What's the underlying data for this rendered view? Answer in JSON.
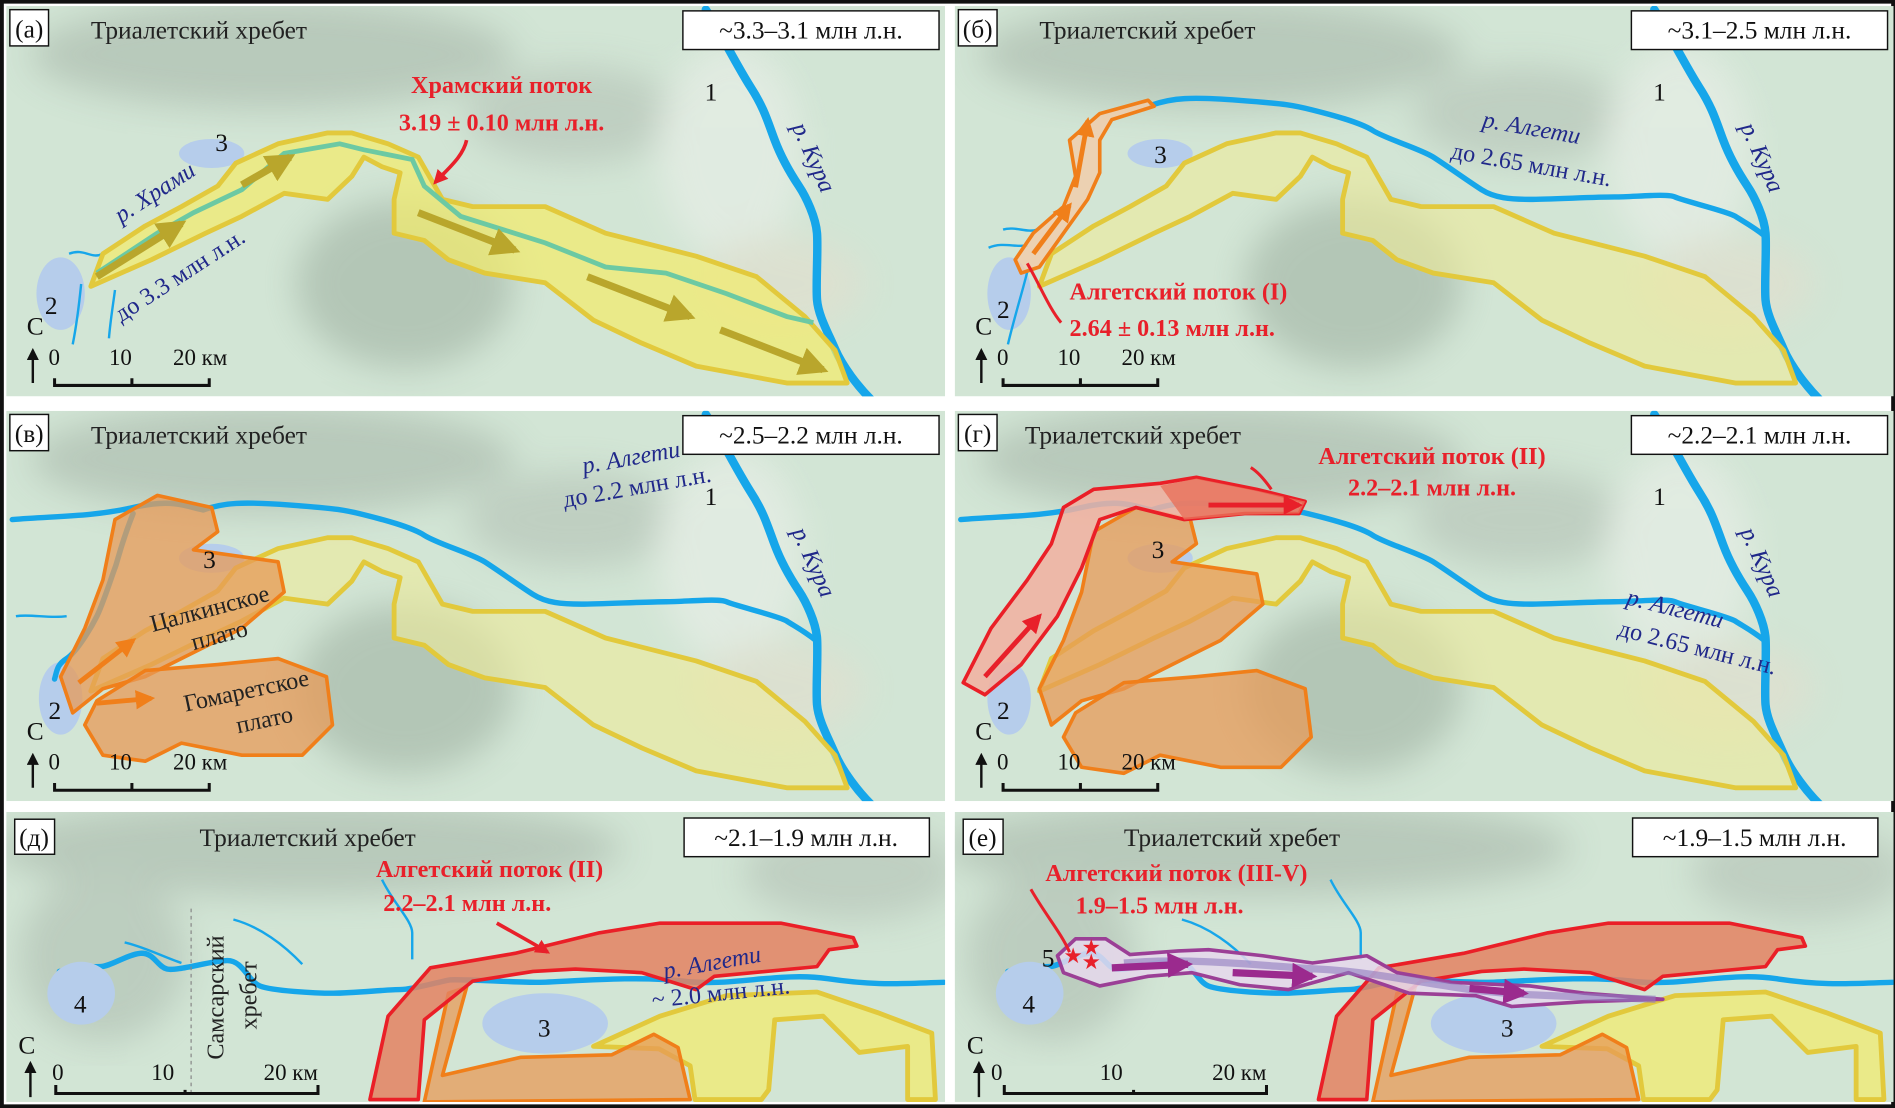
{
  "common": {
    "ridge": "Триалетский хребет",
    "north": "С",
    "scale": [
      "0",
      "10",
      "20 км"
    ],
    "places": [
      "1",
      "2",
      "3",
      "4",
      "5"
    ]
  },
  "colors": {
    "river": "#16a6ea",
    "khrami_flow": "#f3eb6c",
    "plateaus": "#f07f1a",
    "algeti_flow_ii": "#ea1f27",
    "algeti_flow_iii_v": "#9b3f96",
    "annotation_red": "#e8202a",
    "river_label": "#20288a"
  },
  "panels": [
    {
      "letter": "(а)",
      "age": "~3.3–3.1 млн л.н.",
      "flow": "Храмский поток",
      "flow_age": "3.19 ± 0.10 млн л.н.",
      "river": "р. Храми",
      "river_age": "до 3.3 млн л.н.",
      "kura": "р. Кура"
    },
    {
      "letter": "(б)",
      "age": "~3.1–2.5 млн л.н.",
      "flow": "Алгетский поток (I)",
      "flow_age": "2.64 ± 0.13 млн л.н.",
      "river": "р. Алгети",
      "river_age": "до 2.65 млн л.н.",
      "kura": "р. Кура"
    },
    {
      "letter": "(в)",
      "age": "~2.5–2.2 млн л.н.",
      "river": "р. Алгети",
      "river_age": "до 2.2 млн л.н.",
      "kura": "р. Кура",
      "plateau1": [
        "Цалкинское",
        "плато"
      ],
      "plateau2": [
        "Гомаретское",
        "плато"
      ]
    },
    {
      "letter": "(г)",
      "age": "~2.2–2.1 млн л.н.",
      "flow": "Алгетский поток (II)",
      "flow_age": "2.2–2.1 млн л.н.",
      "river": "р. Алгети",
      "river_age": "до 2.65 млн л.н.",
      "kura": "р. Кура"
    },
    {
      "letter": "(д)",
      "age": "~2.1–1.9 млн л.н.",
      "flow": "Алгетский поток (II)",
      "flow_age": "2.2–2.1 млн л.н.",
      "river": "р. Алгети",
      "river_age": "~ 2.0 млн л.н.",
      "ridge2": [
        "Самсарский",
        "хребет"
      ]
    },
    {
      "letter": "(е)",
      "age": "~1.9–1.5 млн л.н.",
      "flow": "Алгетский поток (III-V)",
      "flow_age": "1.9–1.5 млн л.н."
    }
  ]
}
